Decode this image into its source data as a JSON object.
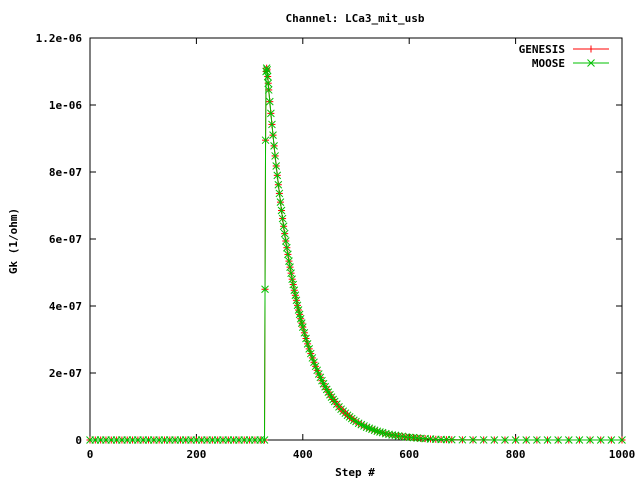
{
  "chart_data": {
    "type": "line",
    "title": "Channel: LCa3_mit_usb",
    "xlabel": "Step #",
    "ylabel": "Gk (1/ohm)",
    "xlim": [
      0,
      1000
    ],
    "ylim": [
      0,
      1.2e-06
    ],
    "xticks": [
      {
        "value": 0,
        "label": "0"
      },
      {
        "value": 200,
        "label": "200"
      },
      {
        "value": 400,
        "label": "400"
      },
      {
        "value": 600,
        "label": "600"
      },
      {
        "value": 800,
        "label": "800"
      },
      {
        "value": 1000,
        "label": "1000"
      }
    ],
    "yticks": [
      {
        "value": 0,
        "label": "0"
      },
      {
        "value": 2e-07,
        "label": "2e-07"
      },
      {
        "value": 4e-07,
        "label": "4e-07"
      },
      {
        "value": 6e-07,
        "label": "6e-07"
      },
      {
        "value": 8e-07,
        "label": "8e-07"
      },
      {
        "value": 1e-06,
        "label": "1e-06"
      },
      {
        "value": 1.2e-06,
        "label": "1.2e-06"
      }
    ],
    "grid": false,
    "legend_position": "top-right",
    "series": [
      {
        "name": "GENESIS",
        "color": "#ff0000",
        "marker": "plus",
        "x": [
          0,
          10,
          20,
          30,
          40,
          50,
          60,
          70,
          80,
          90,
          100,
          110,
          120,
          130,
          140,
          150,
          160,
          170,
          180,
          190,
          200,
          210,
          220,
          230,
          240,
          250,
          260,
          270,
          280,
          290,
          300,
          310,
          320,
          328,
          329,
          330,
          331,
          332,
          333,
          334,
          335,
          336,
          338,
          340,
          342,
          344,
          346,
          348,
          350,
          352,
          354,
          356,
          358,
          360,
          362,
          364,
          366,
          368,
          370,
          372,
          374,
          376,
          378,
          380,
          382,
          384,
          386,
          388,
          390,
          392,
          394,
          396,
          398,
          400,
          403,
          406,
          409,
          412,
          415,
          418,
          421,
          424,
          427,
          430,
          433,
          436,
          439,
          442,
          445,
          448,
          451,
          454,
          457,
          460,
          464,
          468,
          472,
          476,
          480,
          484,
          488,
          492,
          496,
          500,
          505,
          510,
          515,
          520,
          525,
          530,
          535,
          540,
          545,
          550,
          556,
          562,
          568,
          574,
          580,
          587,
          594,
          601,
          608,
          615,
          622,
          630,
          640,
          650,
          660,
          670,
          680,
          700,
          720,
          740,
          760,
          780,
          800,
          820,
          840,
          860,
          880,
          900,
          920,
          940,
          960,
          980,
          1000
        ],
        "y": [
          0,
          0,
          0,
          0,
          0,
          0,
          0,
          0,
          0,
          0,
          0,
          0,
          0,
          0,
          0,
          0,
          0,
          0,
          0,
          0,
          0,
          0,
          0,
          0,
          0,
          0,
          0,
          0,
          0,
          0,
          0,
          0,
          0,
          0,
          4.5e-07,
          8.95e-07,
          1.1e-06,
          1.11e-06,
          1.105e-06,
          1.085e-06,
          1.065e-06,
          1.045e-06,
          1.01e-06,
          9.75e-07,
          9.42e-07,
          9.1e-07,
          8.78e-07,
          8.48e-07,
          8.18e-07,
          7.9e-07,
          7.62e-07,
          7.36e-07,
          7.1e-07,
          6.85e-07,
          6.61e-07,
          6.38e-07,
          6.16e-07,
          5.94e-07,
          5.74e-07,
          5.54e-07,
          5.34e-07,
          5.16e-07,
          4.98e-07,
          4.8e-07,
          4.64e-07,
          4.47e-07,
          4.32e-07,
          4.17e-07,
          4.02e-07,
          3.88e-07,
          3.75e-07,
          3.62e-07,
          3.49e-07,
          3.37e-07,
          3.2e-07,
          3.03e-07,
          2.87e-07,
          2.72e-07,
          2.58e-07,
          2.45e-07,
          2.32e-07,
          2.2e-07,
          2.08e-07,
          1.97e-07,
          1.87e-07,
          1.77e-07,
          1.68e-07,
          1.59e-07,
          1.51e-07,
          1.43e-07,
          1.35e-07,
          1.28e-07,
          1.21e-07,
          1.15e-07,
          1.07e-07,
          9.9e-08,
          9.2e-08,
          8.6e-08,
          8e-08,
          7.4e-08,
          6.9e-08,
          6.4e-08,
          5.9e-08,
          5.5e-08,
          5e-08,
          4.6e-08,
          4.2e-08,
          3.8e-08,
          3.5e-08,
          3.2e-08,
          2.9e-08,
          2.6e-08,
          2.4e-08,
          2.2e-08,
          1.9e-08,
          1.7e-08,
          1.5e-08,
          1.4e-08,
          1.2e-08,
          1.1e-08,
          9e-09,
          8e-09,
          7e-09,
          6e-09,
          5e-09,
          4e-09,
          3e-09,
          2e-09,
          1.5e-09,
          1e-09,
          8e-10,
          5e-10,
          3e-10,
          2e-10,
          1e-10,
          0,
          0,
          0,
          0,
          0,
          0,
          0,
          0,
          0,
          0,
          0,
          0
        ]
      },
      {
        "name": "MOOSE",
        "color": "#00c000",
        "marker": "cross",
        "x": [
          0,
          10,
          20,
          30,
          40,
          50,
          60,
          70,
          80,
          90,
          100,
          110,
          120,
          130,
          140,
          150,
          160,
          170,
          180,
          190,
          200,
          210,
          220,
          230,
          240,
          250,
          260,
          270,
          280,
          290,
          300,
          310,
          320,
          328,
          329,
          330,
          331,
          332,
          333,
          334,
          335,
          336,
          338,
          340,
          342,
          344,
          346,
          348,
          350,
          352,
          354,
          356,
          358,
          360,
          362,
          364,
          366,
          368,
          370,
          372,
          374,
          376,
          378,
          380,
          382,
          384,
          386,
          388,
          390,
          392,
          394,
          396,
          398,
          400,
          403,
          406,
          409,
          412,
          415,
          418,
          421,
          424,
          427,
          430,
          433,
          436,
          439,
          442,
          445,
          448,
          451,
          454,
          457,
          460,
          464,
          468,
          472,
          476,
          480,
          484,
          488,
          492,
          496,
          500,
          505,
          510,
          515,
          520,
          525,
          530,
          535,
          540,
          545,
          550,
          556,
          562,
          568,
          574,
          580,
          587,
          594,
          601,
          608,
          615,
          622,
          630,
          640,
          650,
          660,
          670,
          680,
          700,
          720,
          740,
          760,
          780,
          800,
          820,
          840,
          860,
          880,
          900,
          920,
          940,
          960,
          980,
          1000
        ],
        "y": [
          0,
          0,
          0,
          0,
          0,
          0,
          0,
          0,
          0,
          0,
          0,
          0,
          0,
          0,
          0,
          0,
          0,
          0,
          0,
          0,
          0,
          0,
          0,
          0,
          0,
          0,
          0,
          0,
          0,
          0,
          0,
          0,
          0,
          0,
          4.5e-07,
          8.95e-07,
          1.1e-06,
          1.11e-06,
          1.105e-06,
          1.085e-06,
          1.065e-06,
          1.045e-06,
          1.01e-06,
          9.75e-07,
          9.42e-07,
          9.1e-07,
          8.78e-07,
          8.48e-07,
          8.18e-07,
          7.9e-07,
          7.62e-07,
          7.36e-07,
          7.1e-07,
          6.85e-07,
          6.61e-07,
          6.38e-07,
          6.16e-07,
          5.94e-07,
          5.74e-07,
          5.54e-07,
          5.34e-07,
          5.16e-07,
          4.98e-07,
          4.8e-07,
          4.64e-07,
          4.47e-07,
          4.32e-07,
          4.17e-07,
          4.02e-07,
          3.88e-07,
          3.75e-07,
          3.62e-07,
          3.49e-07,
          3.37e-07,
          3.2e-07,
          3.03e-07,
          2.87e-07,
          2.72e-07,
          2.58e-07,
          2.45e-07,
          2.32e-07,
          2.2e-07,
          2.08e-07,
          1.97e-07,
          1.87e-07,
          1.77e-07,
          1.68e-07,
          1.59e-07,
          1.51e-07,
          1.43e-07,
          1.35e-07,
          1.28e-07,
          1.21e-07,
          1.15e-07,
          1.07e-07,
          9.9e-08,
          9.2e-08,
          8.6e-08,
          8e-08,
          7.4e-08,
          6.9e-08,
          6.4e-08,
          5.9e-08,
          5.5e-08,
          5e-08,
          4.6e-08,
          4.2e-08,
          3.8e-08,
          3.5e-08,
          3.2e-08,
          2.9e-08,
          2.6e-08,
          2.4e-08,
          2.2e-08,
          1.9e-08,
          1.7e-08,
          1.5e-08,
          1.4e-08,
          1.2e-08,
          1.1e-08,
          9e-09,
          8e-09,
          7e-09,
          6e-09,
          5e-09,
          4e-09,
          3e-09,
          2e-09,
          1.5e-09,
          1e-09,
          8e-10,
          5e-10,
          3e-10,
          2e-10,
          1e-10,
          0,
          0,
          0,
          0,
          0,
          0,
          0,
          0,
          0,
          0,
          0,
          0
        ]
      }
    ]
  }
}
